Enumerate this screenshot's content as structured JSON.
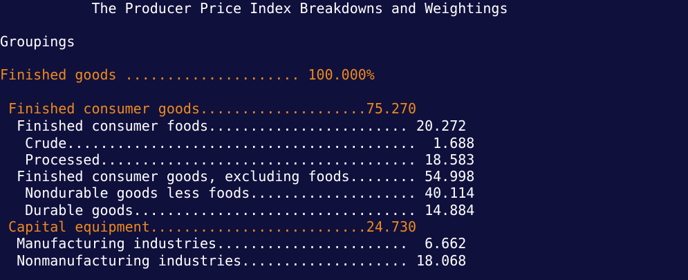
{
  "colors": {
    "background": "#10103d",
    "text": "#ffffff",
    "highlight": "#ee8a1c"
  },
  "title": "           The Producer Price Index Breakdowns and Weightings",
  "section_label": "Groupings",
  "rows": [
    {
      "text": "Finished goods ..................... 100.000%",
      "highlight": true
    },
    {
      "text": " Finished consumer goods....................75.270",
      "highlight": true
    },
    {
      "text": "  Finished consumer foods........................ 20.272",
      "highlight": false
    },
    {
      "text": "   Crude..........................................  1.688",
      "highlight": false
    },
    {
      "text": "   Processed...................................... 18.583",
      "highlight": false
    },
    {
      "text": "  Finished consumer goods, excluding foods........ 54.998",
      "highlight": false
    },
    {
      "text": "   Nondurable goods less foods.................... 40.114",
      "highlight": false
    },
    {
      "text": "   Durable goods.................................. 14.884",
      "highlight": false
    },
    {
      "text": " Capital equipment..........................24.730",
      "highlight": true
    },
    {
      "text": "  Manufacturing industries.......................  6.662",
      "highlight": false
    },
    {
      "text": "  Nonmanufacturing industries.................... 18.068",
      "highlight": false
    }
  ]
}
